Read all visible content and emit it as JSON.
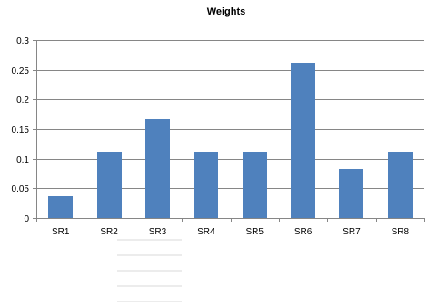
{
  "chart_data": {
    "type": "bar",
    "title": "Weights",
    "xlabel": "",
    "ylabel": "",
    "categories": [
      "SR1",
      "SR2",
      "SR3",
      "SR4",
      "SR5",
      "SR6",
      "SR7",
      "SR8"
    ],
    "values": [
      0.036,
      0.111,
      0.167,
      0.111,
      0.111,
      0.262,
      0.083,
      0.111
    ],
    "ylim": [
      0,
      0.3
    ],
    "yticks": [
      0,
      0.05,
      0.1,
      0.15,
      0.2,
      0.25,
      0.3
    ],
    "ytick_labels": [
      "0",
      "0.05",
      "0.1",
      "0.15",
      "0.2",
      "0.25",
      "0.3"
    ],
    "grid": true,
    "legend": "none",
    "bar_color": "#4f81bd"
  }
}
